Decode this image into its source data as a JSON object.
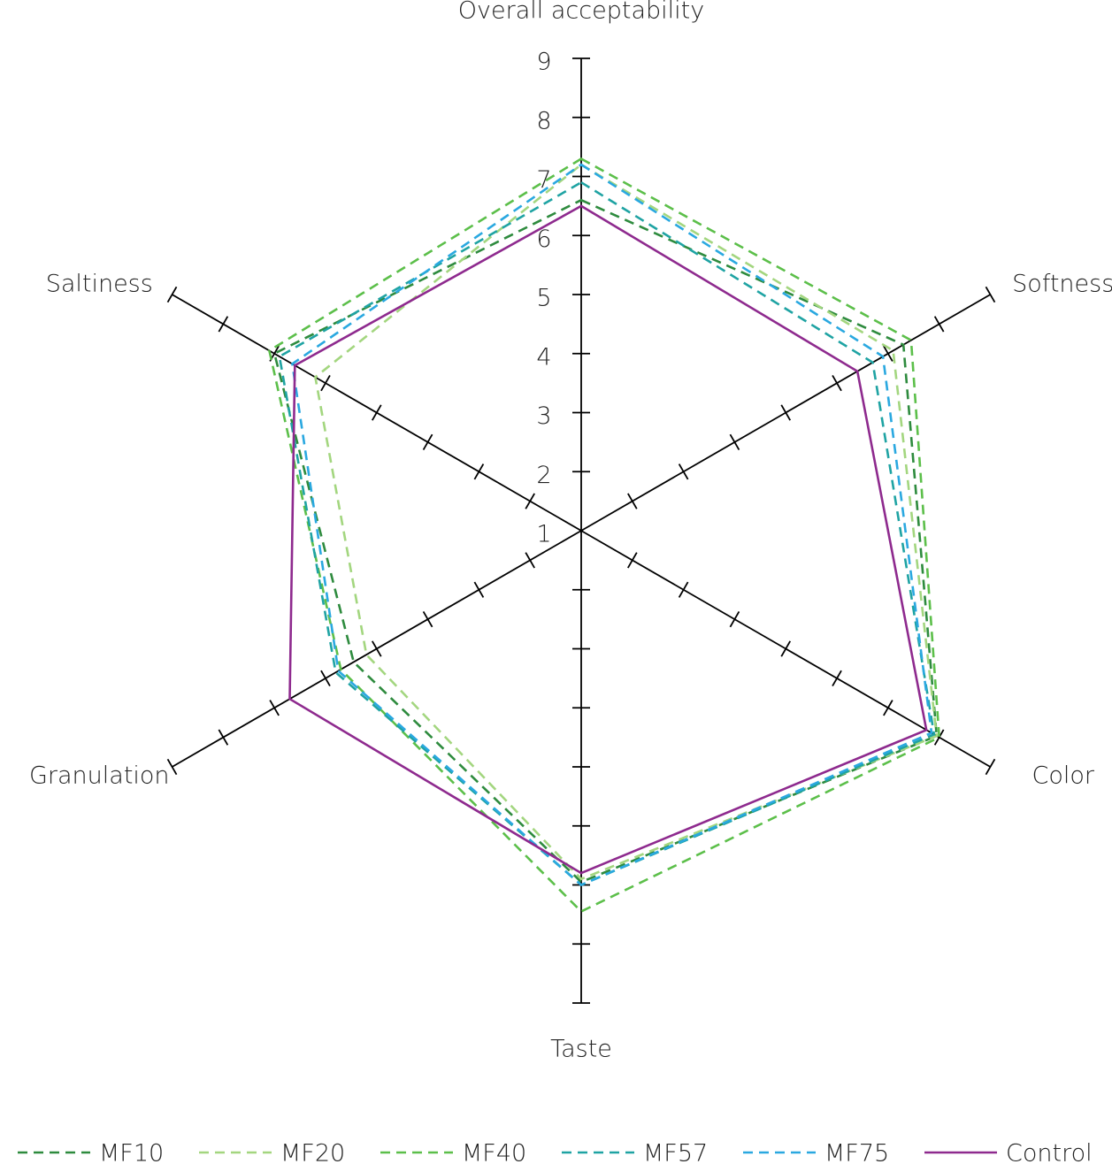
{
  "chart_data": {
    "type": "radar",
    "categories": [
      "Overall acceptability",
      "Softness",
      "Color",
      "Taste",
      "Granulation",
      "Saltiness"
    ],
    "rlim": [
      1,
      9
    ],
    "rticks": [
      1,
      2,
      3,
      4,
      5,
      6,
      7,
      8,
      9
    ],
    "series": [
      {
        "name": "MF10",
        "color": "#2e8b3e",
        "dash": true,
        "values": [
          6.6,
          7.3,
          7.95,
          6.95,
          5.45,
          7.0
        ]
      },
      {
        "name": "MF20",
        "color": "#a3d67f",
        "dash": true,
        "values": [
          7.2,
          7.1,
          7.95,
          6.9,
          5.2,
          6.2
        ]
      },
      {
        "name": "MF40",
        "color": "#5cbf4a",
        "dash": true,
        "values": [
          7.3,
          7.45,
          8.0,
          7.45,
          5.7,
          7.1
        ]
      },
      {
        "name": "MF57",
        "color": "#1fa3a3",
        "dash": true,
        "values": [
          6.9,
          6.7,
          7.9,
          7.0,
          5.8,
          6.9
        ]
      },
      {
        "name": "MF75",
        "color": "#2aa8e0",
        "dash": true,
        "values": [
          7.2,
          6.9,
          7.85,
          7.0,
          5.75,
          6.65
        ]
      },
      {
        "name": "Control",
        "color": "#8e2a8e",
        "dash": false,
        "values": [
          6.5,
          6.4,
          7.75,
          6.8,
          6.7,
          6.6
        ]
      }
    ]
  }
}
